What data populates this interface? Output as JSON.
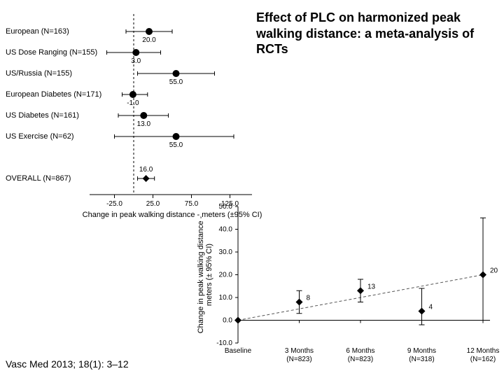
{
  "title": "Effect of PLC on harmonized peak walking distance: a meta-analysis of RCTs",
  "citation": "Vasc Med 2013; 18(1): 3–12",
  "colors": {
    "bg": "#ffffff",
    "ink": "#000000",
    "axis": "#000000",
    "marker": "#000000",
    "refline": "#000000",
    "trend": "#555555"
  },
  "forest": {
    "type": "forest",
    "x_axis_label": "Change in peak walking distance - meters (±95% CI)",
    "xlim": [
      -50,
      150
    ],
    "xticks": [
      -25,
      25,
      75,
      125
    ],
    "ref": 0,
    "marker_r": 5,
    "whisker_h": 6,
    "label_fontsize": 11,
    "tick_fontsize": 10,
    "studies": [
      {
        "label": "European (N=163)",
        "est": 20.0,
        "lo": -10,
        "hi": 50,
        "val_label": "20.0"
      },
      {
        "label": "US Dose Ranging (N=155)",
        "est": 3.0,
        "lo": -35,
        "hi": 35,
        "val_label": "3.0"
      },
      {
        "label": "US/Russia (N=155)",
        "est": 55.0,
        "lo": 5,
        "hi": 105,
        "val_label": "55.0"
      },
      {
        "label": "European Diabetes (N=171)",
        "est": -1.0,
        "lo": -15,
        "hi": 18,
        "val_label": "-1.0"
      },
      {
        "label": "US Diabetes (N=161)",
        "est": 13.0,
        "lo": -20,
        "hi": 45,
        "val_label": "13.0"
      },
      {
        "label": "US Exercise (N=62)",
        "est": 55.0,
        "lo": -25,
        "hi": 130,
        "val_label": "55.0"
      }
    ],
    "overall": {
      "label": "OVERALL (N=867)",
      "est": 16.0,
      "lo": 5,
      "hi": 27,
      "val_label": "16.0"
    }
  },
  "timeline": {
    "type": "scatter-ci",
    "y_axis_label": "Change in peak walking distance - meters (± 95% CI)",
    "ylim": [
      -10,
      50
    ],
    "yticks": [
      -10,
      0,
      10,
      20,
      30,
      40,
      50
    ],
    "trend_dash": "4,3",
    "points": [
      {
        "x_label": "Baseline",
        "y": 0,
        "lo": 0,
        "hi": 0,
        "val_label": ""
      },
      {
        "x_label": "3 Months\n(N=823)",
        "y": 8,
        "lo": 3,
        "hi": 13,
        "val_label": "8"
      },
      {
        "x_label": "6 Months\n(N=823)",
        "y": 13,
        "lo": 8,
        "hi": 18,
        "val_label": "13"
      },
      {
        "x_label": "9 Months\n(N=318)",
        "y": 4,
        "lo": -2,
        "hi": 14,
        "val_label": "4"
      },
      {
        "x_label": "12 Months\n(N=162)",
        "y": 20,
        "lo": 0,
        "hi": 45,
        "val_label": "20"
      }
    ]
  }
}
